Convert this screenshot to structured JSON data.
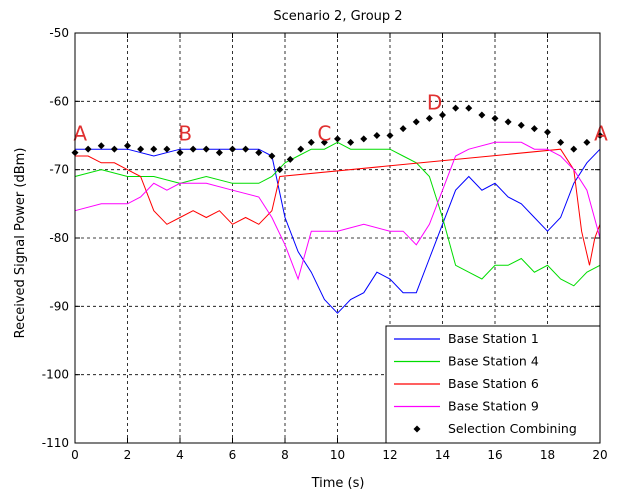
{
  "chart_data": {
    "type": "line",
    "title": "Scenario 2, Group 2",
    "xlabel": "Time (s)",
    "ylabel": "Received Signal Power (dBm)",
    "xlim": [
      0,
      20
    ],
    "ylim": [
      -110,
      -50
    ],
    "x_ticks": [
      "0",
      "2",
      "4",
      "6",
      "8",
      "10",
      "12",
      "14",
      "16",
      "18",
      "20"
    ],
    "y_ticks": [
      "-50",
      "-60",
      "-70",
      "-80",
      "-90",
      "-100",
      "-110"
    ],
    "grid": true,
    "legend_position": "bottom-right",
    "annotations": [
      {
        "text": "A",
        "x": 0.2,
        "y": -66,
        "color": "#e03030"
      },
      {
        "text": "B",
        "x": 4.2,
        "y": -66,
        "color": "#e03030"
      },
      {
        "text": "C",
        "x": 9.5,
        "y": -66,
        "color": "#e03030"
      },
      {
        "text": "D",
        "x": 13.7,
        "y": -61.5,
        "color": "#e03030"
      },
      {
        "text": "A",
        "x": 19.9,
        "y": -66,
        "color": "#e03030"
      }
    ],
    "series": [
      {
        "name": "Base Station 1",
        "color": "#0000ff",
        "style": "line",
        "x": [
          0,
          1,
          2,
          3,
          4,
          5,
          6,
          7,
          7.5,
          8,
          8.5,
          9,
          9.5,
          10,
          10.5,
          11,
          11.5,
          12,
          12.5,
          13,
          13.5,
          14,
          14.5,
          15,
          15.5,
          16,
          16.5,
          17,
          17.5,
          18,
          18.5,
          19,
          19.5,
          20
        ],
        "y": [
          -67,
          -67,
          -67,
          -68,
          -67,
          -67,
          -67,
          -67,
          -68,
          -77,
          -82,
          -85,
          -89,
          -91,
          -89,
          -88,
          -85,
          -86,
          -88,
          -88,
          -83,
          -78,
          -73,
          -71,
          -73,
          -72,
          -74,
          -75,
          -77,
          -79,
          -77,
          -72,
          -69,
          -67
        ]
      },
      {
        "name": "Base Station 4",
        "color": "#00dd00",
        "style": "line",
        "x": [
          0,
          1,
          2,
          3,
          4,
          5,
          6,
          7,
          7.5,
          8,
          8.5,
          9,
          9.5,
          10,
          10.5,
          11,
          11.5,
          12,
          12.5,
          13,
          13.5,
          14,
          14.5,
          15,
          15.5,
          16,
          16.5,
          17,
          17.5,
          18,
          18.5,
          19,
          19.5,
          20
        ],
        "y": [
          -71,
          -70,
          -71,
          -71,
          -72,
          -71,
          -72,
          -72,
          -71,
          -69,
          -68,
          -67,
          -67,
          -66,
          -67,
          -67,
          -67,
          -67,
          -68,
          -69,
          -71,
          -77,
          -84,
          -85,
          -86,
          -84,
          -84,
          -83,
          -85,
          -84,
          -86,
          -87,
          -85,
          -84
        ]
      },
      {
        "name": "Base Station 6",
        "color": "#ff0000",
        "style": "line",
        "x": [
          0,
          0.5,
          1,
          1.5,
          2,
          2.5,
          3,
          3.5,
          4,
          4.5,
          5,
          5.5,
          6,
          6.5,
          7,
          7.5,
          7.8,
          18.5,
          19,
          19.3,
          19.6,
          19.8,
          20
        ],
        "y": [
          -68,
          -68,
          -69,
          -69,
          -70,
          -71,
          -76,
          -78,
          -77,
          -76,
          -77,
          -76,
          -78,
          -77,
          -78,
          -76,
          -71,
          -67,
          -70,
          -79,
          -84,
          -80,
          -78
        ]
      },
      {
        "name": "Base Station 9",
        "color": "#ff00ff",
        "style": "line",
        "x": [
          0,
          1,
          2,
          2.5,
          3,
          3.5,
          4,
          5,
          6,
          7,
          7.5,
          8,
          8.5,
          9,
          9.5,
          10,
          11,
          12,
          12.5,
          13,
          13.5,
          14,
          14.5,
          15,
          16,
          17,
          17.5,
          18,
          18.5,
          19,
          19.5,
          20
        ],
        "y": [
          -76,
          -75,
          -75,
          -74,
          -72,
          -73,
          -72,
          -72,
          -73,
          -74,
          -77,
          -81,
          -86,
          -79,
          -79,
          -79,
          -78,
          -79,
          -79,
          -81,
          -78,
          -73,
          -68,
          -67,
          -66,
          -66,
          -67,
          -67,
          -68,
          -70,
          -73,
          -80
        ]
      },
      {
        "name": "Selection Combining",
        "color": "#000000",
        "style": "markers",
        "x": [
          0,
          0.5,
          1,
          1.5,
          2,
          2.5,
          3,
          3.5,
          4,
          4.5,
          5,
          5.5,
          6,
          6.5,
          7,
          7.5,
          7.8,
          8.2,
          8.6,
          9,
          9.5,
          10,
          10.5,
          11,
          11.5,
          12,
          12.5,
          13,
          13.5,
          14,
          14.5,
          15,
          15.5,
          16,
          16.5,
          17,
          17.5,
          18,
          18.5,
          19,
          19.5,
          20
        ],
        "y": [
          -67.5,
          -67,
          -66.5,
          -67,
          -66.5,
          -67,
          -67,
          -67,
          -67.5,
          -67,
          -67,
          -67.5,
          -67,
          -67,
          -67.5,
          -68,
          -70,
          -68.5,
          -67,
          -66,
          -66,
          -65.5,
          -66,
          -65.5,
          -65,
          -65,
          -64,
          -63,
          -62.5,
          -62,
          -61,
          -61,
          -62,
          -62.5,
          -63,
          -63.5,
          -64,
          -64.5,
          -66,
          -67,
          -66,
          -65
        ]
      }
    ]
  }
}
